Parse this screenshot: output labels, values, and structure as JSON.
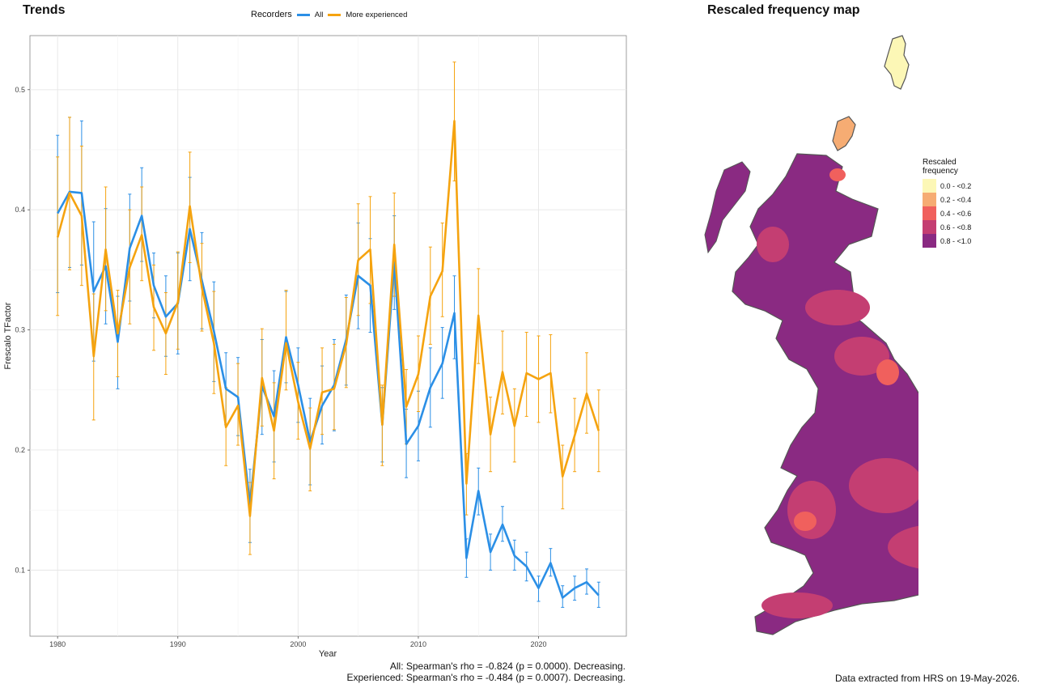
{
  "trends_title": "Trends",
  "map_title": "Rescaled frequency map",
  "legend": {
    "title": "Recorders",
    "items": [
      {
        "label": "All",
        "color": "#2b8fe6"
      },
      {
        "label": "More experienced",
        "color": "#f5a30f"
      }
    ]
  },
  "stats": {
    "line1": "All: Spearman's rho = -0.824 (p = 0.0000). Decreasing.",
    "line2": "Experienced: Spearman's rho = -0.484 (p = 0.0007). Decreasing."
  },
  "source_note": "Data extracted from HRS on 19-May-2026.",
  "map_legend": {
    "title_line1": "Rescaled",
    "title_line2": "frequency",
    "items": [
      {
        "label": "0.0 - <0.2",
        "color": "#fcf7b6"
      },
      {
        "label": "0.2 - <0.4",
        "color": "#f6ac73"
      },
      {
        "label": "0.4 - <0.6",
        "color": "#f0605d"
      },
      {
        "label": "0.6 - <0.8",
        "color": "#c43e72"
      },
      {
        "label": "0.8 - <1.0",
        "color": "#8a2a82"
      }
    ]
  },
  "chart_data": {
    "type": "line",
    "xlabel": "Year",
    "ylabel": "Frescalo TFactor",
    "xlim": [
      1977.7,
      2027.3
    ],
    "ylim": [
      0.045,
      0.545
    ],
    "x_ticks": [
      1980,
      1990,
      2000,
      2010,
      2020
    ],
    "y_ticks": [
      0.1,
      0.2,
      0.3,
      0.4,
      0.5
    ],
    "x_tick_labels": [
      "1980",
      "1990",
      "2000",
      "2010",
      "2020"
    ],
    "y_tick_labels": [
      "0.1",
      "0.2",
      "0.3",
      "0.4",
      "0.5"
    ],
    "grid": true,
    "legend_position": "top",
    "x": [
      1980,
      1981,
      1982,
      1983,
      1984,
      1985,
      1986,
      1987,
      1988,
      1989,
      1990,
      1991,
      1992,
      1993,
      1994,
      1995,
      1996,
      1997,
      1998,
      1999,
      2000,
      2001,
      2002,
      2003,
      2004,
      2005,
      2006,
      2007,
      2008,
      2009,
      2010,
      2011,
      2012,
      2013,
      2014,
      2015,
      2016,
      2017,
      2018,
      2019,
      2020,
      2021,
      2022,
      2023,
      2024,
      2025
    ],
    "series": [
      {
        "name": "All",
        "color": "#2b8fe6",
        "values": [
          0.397,
          0.415,
          0.414,
          0.332,
          0.353,
          0.29,
          0.368,
          0.395,
          0.337,
          0.311,
          0.322,
          0.384,
          0.341,
          0.299,
          0.251,
          0.244,
          0.154,
          0.253,
          0.228,
          0.294,
          0.254,
          0.207,
          0.237,
          0.254,
          0.292,
          0.345,
          0.337,
          0.221,
          0.356,
          0.205,
          0.22,
          0.252,
          0.272,
          0.314,
          0.11,
          0.166,
          0.115,
          0.138,
          0.112,
          0.103,
          0.085,
          0.106,
          0.077,
          0.085,
          0.09,
          0.079
        ],
        "lower": [
          0.331,
          0.352,
          0.354,
          0.274,
          0.305,
          0.251,
          0.324,
          0.357,
          0.31,
          0.278,
          0.28,
          0.341,
          0.301,
          0.257,
          0.221,
          0.212,
          0.123,
          0.213,
          0.19,
          0.256,
          0.223,
          0.171,
          0.205,
          0.216,
          0.254,
          0.301,
          0.298,
          0.19,
          0.317,
          0.177,
          0.191,
          0.219,
          0.243,
          0.276,
          0.094,
          0.146,
          0.1,
          0.124,
          0.1,
          0.091,
          0.074,
          0.095,
          0.069,
          0.075,
          0.08,
          0.069
        ],
        "upper": [
          0.462,
          0.477,
          0.474,
          0.39,
          0.401,
          0.328,
          0.413,
          0.435,
          0.364,
          0.345,
          0.364,
          0.427,
          0.381,
          0.34,
          0.281,
          0.277,
          0.184,
          0.292,
          0.266,
          0.332,
          0.285,
          0.243,
          0.27,
          0.292,
          0.329,
          0.389,
          0.376,
          0.252,
          0.395,
          0.234,
          0.249,
          0.285,
          0.302,
          0.345,
          0.126,
          0.185,
          0.13,
          0.153,
          0.125,
          0.115,
          0.095,
          0.118,
          0.087,
          0.095,
          0.101,
          0.09
        ]
      },
      {
        "name": "More experienced",
        "color": "#f5a30f",
        "values": [
          0.377,
          0.414,
          0.395,
          0.278,
          0.367,
          0.297,
          0.352,
          0.379,
          0.319,
          0.297,
          0.323,
          0.403,
          0.335,
          0.289,
          0.219,
          0.237,
          0.145,
          0.26,
          0.216,
          0.289,
          0.24,
          0.201,
          0.248,
          0.251,
          0.288,
          0.358,
          0.367,
          0.221,
          0.371,
          0.236,
          0.263,
          0.328,
          0.349,
          0.474,
          0.172,
          0.312,
          0.213,
          0.265,
          0.22,
          0.264,
          0.259,
          0.264,
          0.178,
          0.212,
          0.247,
          0.216
        ],
        "lower": [
          0.312,
          0.35,
          0.337,
          0.225,
          0.316,
          0.261,
          0.305,
          0.341,
          0.283,
          0.263,
          0.284,
          0.356,
          0.299,
          0.247,
          0.187,
          0.204,
          0.113,
          0.22,
          0.176,
          0.25,
          0.209,
          0.166,
          0.213,
          0.217,
          0.252,
          0.312,
          0.322,
          0.187,
          0.328,
          0.205,
          0.232,
          0.288,
          0.311,
          0.424,
          0.146,
          0.272,
          0.182,
          0.23,
          0.19,
          0.228,
          0.223,
          0.231,
          0.151,
          0.182,
          0.214,
          0.182
        ],
        "upper": [
          0.444,
          0.477,
          0.453,
          0.33,
          0.419,
          0.333,
          0.4,
          0.419,
          0.354,
          0.331,
          0.365,
          0.448,
          0.372,
          0.332,
          0.252,
          0.272,
          0.173,
          0.301,
          0.256,
          0.333,
          0.273,
          0.235,
          0.285,
          0.288,
          0.327,
          0.405,
          0.411,
          0.254,
          0.414,
          0.267,
          0.295,
          0.369,
          0.389,
          0.523,
          0.197,
          0.351,
          0.244,
          0.299,
          0.251,
          0.298,
          0.295,
          0.296,
          0.204,
          0.243,
          0.281,
          0.25
        ]
      }
    ]
  }
}
